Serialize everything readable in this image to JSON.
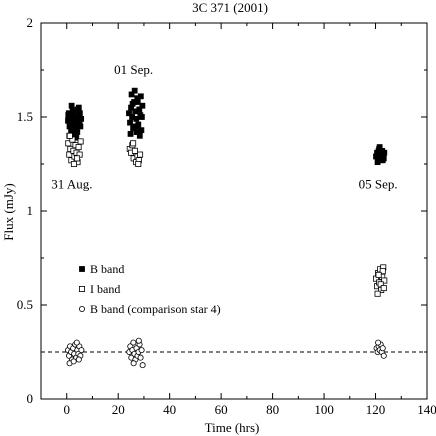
{
  "chart_data": {
    "type": "scatter",
    "title": "3C 371 (2001)",
    "xlabel": "Time (hrs)",
    "ylabel": "Flux (mJy)",
    "xlim": [
      -10,
      140
    ],
    "ylim": [
      0,
      2
    ],
    "xticks": [
      0,
      20,
      40,
      60,
      80,
      100,
      120,
      140
    ],
    "yticks": [
      0,
      0.5,
      1,
      1.5,
      2
    ],
    "ytick_labels": [
      "0",
      "0.5",
      "1",
      "1.5",
      "2"
    ],
    "grid": false,
    "legend_position": "center-left",
    "reference_line": {
      "y": 0.25,
      "style": "dashed"
    },
    "annotations": [
      {
        "text": "01 Sep.",
        "x": 26,
        "y": 1.73
      },
      {
        "text": "31 Aug.",
        "x": 2,
        "y": 1.12
      },
      {
        "text": "05 Sep.",
        "x": 121,
        "y": 1.12
      }
    ],
    "series": [
      {
        "name": "B band",
        "marker": "filled-square",
        "points": [
          [
            0.5,
            1.48
          ],
          [
            0.8,
            1.52
          ],
          [
            1.1,
            1.45
          ],
          [
            1.4,
            1.5
          ],
          [
            1.7,
            1.43
          ],
          [
            2.0,
            1.47
          ],
          [
            2.3,
            1.53
          ],
          [
            2.6,
            1.49
          ],
          [
            2.9,
            1.44
          ],
          [
            3.2,
            1.51
          ],
          [
            3.5,
            1.46
          ],
          [
            3.8,
            1.48
          ],
          [
            4.1,
            1.42
          ],
          [
            4.4,
            1.5
          ],
          [
            4.7,
            1.55
          ],
          [
            5.0,
            1.47
          ],
          [
            5.3,
            1.45
          ],
          [
            5.6,
            1.49
          ],
          [
            1.0,
            1.4
          ],
          [
            2.2,
            1.41
          ],
          [
            3.3,
            1.43
          ],
          [
            4.2,
            1.54
          ],
          [
            0.6,
            1.51
          ],
          [
            5.1,
            1.52
          ],
          [
            1.9,
            1.56
          ],
          [
            3.7,
            1.39
          ],
          [
            24.2,
            1.52
          ],
          [
            24.6,
            1.47
          ],
          [
            25.0,
            1.55
          ],
          [
            25.4,
            1.5
          ],
          [
            25.8,
            1.44
          ],
          [
            26.2,
            1.58
          ],
          [
            26.6,
            1.53
          ],
          [
            27.0,
            1.49
          ],
          [
            27.4,
            1.6
          ],
          [
            27.8,
            1.46
          ],
          [
            28.2,
            1.54
          ],
          [
            28.6,
            1.51
          ],
          [
            29.0,
            1.43
          ],
          [
            29.4,
            1.56
          ],
          [
            25.2,
            1.62
          ],
          [
            26.4,
            1.64
          ],
          [
            27.6,
            1.58
          ],
          [
            28.4,
            1.4
          ],
          [
            24.8,
            1.41
          ],
          [
            26.8,
            1.45
          ],
          [
            29.2,
            1.5
          ],
          [
            25.6,
            1.57
          ],
          [
            27.2,
            1.42
          ],
          [
            28.8,
            1.61
          ],
          [
            120.2,
            1.29
          ],
          [
            120.6,
            1.31
          ],
          [
            121.0,
            1.28
          ],
          [
            121.4,
            1.33
          ],
          [
            121.8,
            1.3
          ],
          [
            122.2,
            1.27
          ],
          [
            122.6,
            1.32
          ],
          [
            123.0,
            1.29
          ],
          [
            123.4,
            1.31
          ],
          [
            120.8,
            1.26
          ],
          [
            121.6,
            1.34
          ],
          [
            122.4,
            1.3
          ],
          [
            123.2,
            1.28
          ],
          [
            121.2,
            1.32
          ],
          [
            122.8,
            1.27
          ]
        ]
      },
      {
        "name": "I band",
        "marker": "open-square",
        "points": [
          [
            0.6,
            1.36
          ],
          [
            1.0,
            1.3
          ],
          [
            1.4,
            1.33
          ],
          [
            1.8,
            1.27
          ],
          [
            2.2,
            1.38
          ],
          [
            2.6,
            1.32
          ],
          [
            3.0,
            1.29
          ],
          [
            3.4,
            1.35
          ],
          [
            3.8,
            1.31
          ],
          [
            4.2,
            1.26
          ],
          [
            4.6,
            1.34
          ],
          [
            5.0,
            1.3
          ],
          [
            5.4,
            1.37
          ],
          [
            1.2,
            1.4
          ],
          [
            2.8,
            1.25
          ],
          [
            4.0,
            1.28
          ],
          [
            24.5,
            1.33
          ],
          [
            25.0,
            1.31
          ],
          [
            25.5,
            1.35
          ],
          [
            26.0,
            1.28
          ],
          [
            26.5,
            1.32
          ],
          [
            27.0,
            1.26
          ],
          [
            27.5,
            1.29
          ],
          [
            28.0,
            1.27
          ],
          [
            28.5,
            1.3
          ],
          [
            25.8,
            1.36
          ],
          [
            27.8,
            1.25
          ],
          [
            120.2,
            0.64
          ],
          [
            120.6,
            0.6
          ],
          [
            121.0,
            0.67
          ],
          [
            121.4,
            0.62
          ],
          [
            121.8,
            0.69
          ],
          [
            122.2,
            0.58
          ],
          [
            122.6,
            0.65
          ],
          [
            123.0,
            0.7
          ],
          [
            123.4,
            0.63
          ],
          [
            120.8,
            0.56
          ],
          [
            122.0,
            0.61
          ],
          [
            122.8,
            0.68
          ],
          [
            121.2,
            0.66
          ],
          [
            123.2,
            0.59
          ]
        ]
      },
      {
        "name": "B band (comparison star 4)",
        "marker": "open-circle",
        "points": [
          [
            0.5,
            0.26
          ],
          [
            0.9,
            0.23
          ],
          [
            1.3,
            0.28
          ],
          [
            1.7,
            0.25
          ],
          [
            2.1,
            0.21
          ],
          [
            2.5,
            0.27
          ],
          [
            2.9,
            0.24
          ],
          [
            3.3,
            0.29
          ],
          [
            3.7,
            0.22
          ],
          [
            4.1,
            0.26
          ],
          [
            4.5,
            0.24
          ],
          [
            4.9,
            0.28
          ],
          [
            5.3,
            0.23
          ],
          [
            5.7,
            0.26
          ],
          [
            1.1,
            0.19
          ],
          [
            2.7,
            0.2
          ],
          [
            3.9,
            0.3
          ],
          [
            4.7,
            0.21
          ],
          [
            24.3,
            0.25
          ],
          [
            24.7,
            0.28
          ],
          [
            25.1,
            0.22
          ],
          [
            25.5,
            0.26
          ],
          [
            25.9,
            0.3
          ],
          [
            26.3,
            0.24
          ],
          [
            26.7,
            0.21
          ],
          [
            27.1,
            0.27
          ],
          [
            27.5,
            0.23
          ],
          [
            27.9,
            0.25
          ],
          [
            28.3,
            0.29
          ],
          [
            28.7,
            0.22
          ],
          [
            29.1,
            0.26
          ],
          [
            29.5,
            0.18
          ],
          [
            26.0,
            0.19
          ],
          [
            28.0,
            0.31
          ],
          [
            120.4,
            0.27
          ],
          [
            120.8,
            0.25
          ],
          [
            121.2,
            0.28
          ],
          [
            121.6,
            0.26
          ],
          [
            122.0,
            0.29
          ],
          [
            122.4,
            0.25
          ],
          [
            122.8,
            0.27
          ],
          [
            123.2,
            0.23
          ],
          [
            121.0,
            0.3
          ]
        ]
      }
    ]
  }
}
